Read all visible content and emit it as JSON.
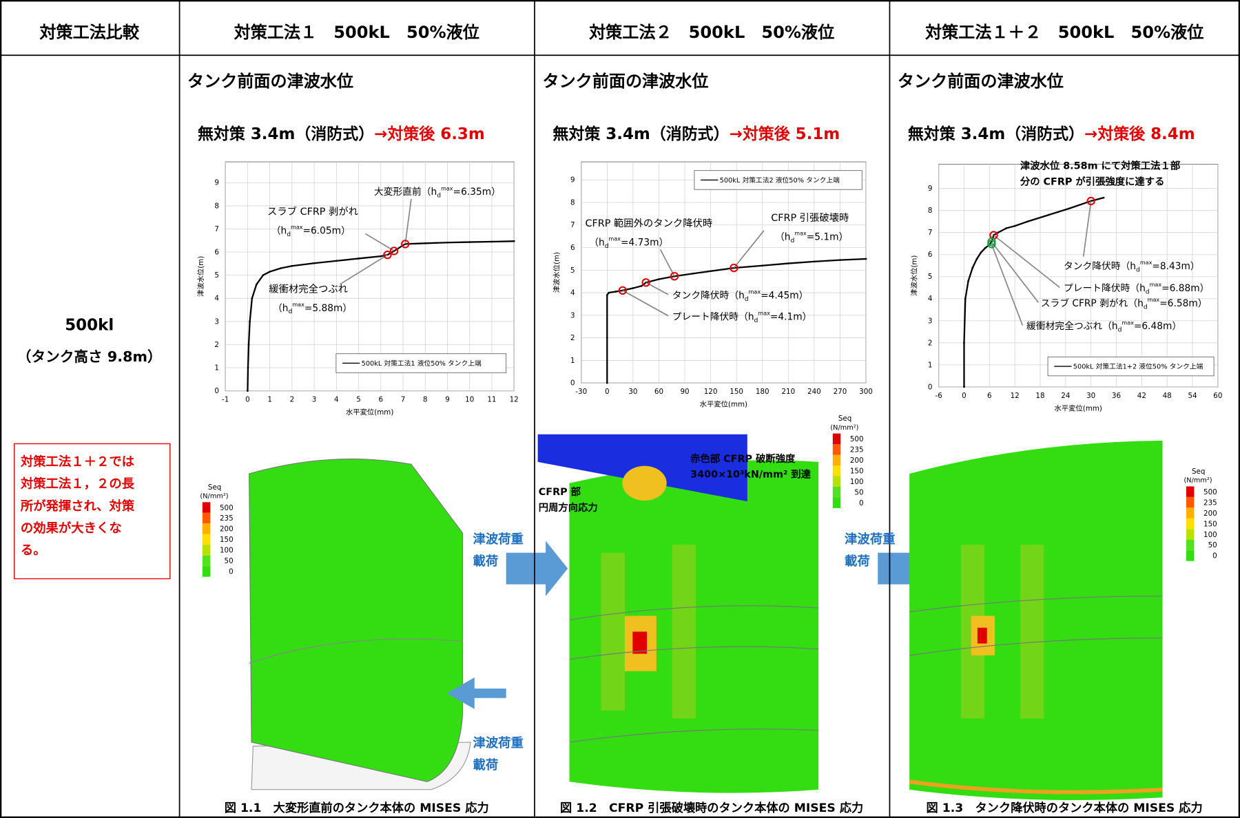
{
  "table": {
    "headers": [
      "対策工法比較",
      "対策工法１　500kL　50%液位",
      "対策工法２　500kL　50%液位",
      "対策工法１＋２　500kL　50%液位"
    ],
    "row_label": {
      "title": "500kl",
      "subtitle": "（タンク高さ 9.8m）",
      "note_lines": [
        "対策工法１＋２では",
        "対策工法１，２の長",
        "所が発揮され、対策",
        "の効果が大きくな",
        "る。"
      ]
    },
    "columns": [
      {
        "heading": "タンク前面の津波水位",
        "before": "無対策 3.4m（消防式）",
        "after": "→対策後 6.3m",
        "chart": {
          "type": "line",
          "xlabel": "水平変位(mm)",
          "ylabel": "津波水位(m)",
          "xlim": [
            -1,
            12
          ],
          "ylim": [
            0,
            9.9
          ],
          "xticks": [
            -1,
            0,
            1,
            2,
            3,
            4,
            5,
            6,
            7,
            8,
            9,
            10,
            11,
            12
          ],
          "yticks": [
            0,
            1,
            2,
            3,
            4,
            5,
            6,
            7,
            8,
            9
          ],
          "grid": true,
          "legend": "lower right",
          "series": [
            {
              "name": "500kL 対策工法1 液位50% タンク上端",
              "color": "#000000",
              "x": [
                0,
                0.02,
                0.05,
                0.1,
                0.2,
                0.4,
                0.7,
                1,
                1.5,
                2,
                3,
                4,
                5,
                6,
                6.3,
                6.6,
                7.1,
                8,
                9,
                10,
                11,
                12
              ],
              "values": [
                0,
                1,
                2,
                3,
                4,
                4.6,
                5,
                5.15,
                5.3,
                5.4,
                5.52,
                5.62,
                5.72,
                5.82,
                5.88,
                6.05,
                6.35,
                6.38,
                6.41,
                6.43,
                6.45,
                6.47
              ]
            }
          ],
          "h_prefix": "（h",
          "h_sub": "d",
          "h_sup": "max",
          "points": [
            {
              "x": 7.1,
              "y": 6.35,
              "color": "#e00000",
              "label": [
                "大変形直前"
              ],
              "value_label": "=6.35m）"
            },
            {
              "x": 6.6,
              "y": 6.05,
              "color": "#e00000",
              "label": [
                "スラブ CFRP 剥がれ"
              ],
              "value_label": "=6.05m）"
            },
            {
              "x": 6.3,
              "y": 5.88,
              "color": "#e00000",
              "label": [
                "緩衝材完全つぶれ"
              ],
              "value_label": "=5.88m）"
            }
          ]
        },
        "figure": {
          "colorbar": {
            "title": "Seq",
            "unit": "(N/mm²)",
            "labels": [
              500,
              235,
              200,
              150,
              100,
              50,
              0
            ]
          },
          "caption": "図 1.1　大変形直前のタンク本体の MISES 応力"
        }
      },
      {
        "heading": "タンク前面の津波水位",
        "before": "無対策 3.4m（消防式）",
        "after": "→対策後 5.1m",
        "chart": {
          "type": "line",
          "xlabel": "水平変位(mm)",
          "ylabel": "津波水位(m)",
          "xlim": [
            -30,
            300
          ],
          "ylim": [
            0,
            9.8
          ],
          "xticks": [
            -30,
            0,
            30,
            60,
            90,
            120,
            150,
            180,
            210,
            240,
            270,
            300
          ],
          "yticks": [
            0,
            1,
            2,
            3,
            4,
            5,
            6,
            7,
            8,
            9
          ],
          "grid": true,
          "legend": "upper right",
          "series": [
            {
              "name": "500kL 対策工法2 液位50% タンク上端",
              "color": "#000000",
              "x": [
                0,
                0,
                0,
                2,
                10,
                18,
                30,
                40,
                45,
                60,
                78,
                100,
                147,
                180,
                210,
                240,
                270,
                300
              ],
              "values": [
                0,
                2,
                3.9,
                4.0,
                4.05,
                4.1,
                4.2,
                4.3,
                4.45,
                4.6,
                4.73,
                4.85,
                5.1,
                5.2,
                5.3,
                5.38,
                5.45,
                5.5
              ]
            }
          ],
          "h_prefix": "（h",
          "h_sub": "d",
          "h_sup": "max",
          "points": [
            {
              "x": 147,
              "y": 5.1,
              "color": "#e00000",
              "label": [
                "CFRP 引張破壊時"
              ],
              "value_label": "=5.1m）"
            },
            {
              "x": 78,
              "y": 4.73,
              "color": "#e00000",
              "label": [
                "CFRP 範囲外のタンク降伏時"
              ],
              "value_label": "=4.73m）"
            },
            {
              "x": 45,
              "y": 4.45,
              "color": "#e00000",
              "label": [
                "タンク降伏時"
              ],
              "value_label": "=4.45m）"
            },
            {
              "x": 18,
              "y": 4.1,
              "color": "#e00000",
              "label": [
                "プレート降伏時"
              ],
              "value_label": "=4.1m）"
            }
          ]
        },
        "figure": {
          "colorbar": {
            "title": "Seq",
            "unit": "(N/mm²)",
            "labels": [
              500,
              235,
              200,
              150,
              100,
              50,
              0
            ]
          },
          "caption": "図 1.2　CFRP 引張破壊時のタンク本体の MISES 応力"
        }
      },
      {
        "heading": "タンク前面の津波水位",
        "before": "無対策 3.4m（消防式）",
        "after": "→対策後 8.4m",
        "chart": {
          "type": "line",
          "xlabel": "水平変位(mm)",
          "ylabel": "津波水位(m)",
          "xlim": [
            -6,
            60
          ],
          "ylim": [
            0,
            10.1
          ],
          "xticks": [
            -6,
            0,
            6,
            12,
            18,
            24,
            30,
            36,
            42,
            48,
            54,
            60
          ],
          "yticks": [
            0,
            1,
            2,
            3,
            4,
            5,
            6,
            7,
            8,
            9
          ],
          "grid": true,
          "legend": "lower right",
          "series": [
            {
              "name": "500kL 対策工法1+2 液位50% タンク上端",
              "color": "#000000",
              "x": [
                0,
                0,
                0.3,
                1,
                2,
                3,
                4,
                5,
                6,
                6.5,
                7,
                8,
                10,
                12,
                15,
                20,
                25,
                30,
                33
              ],
              "values": [
                0,
                2,
                4,
                4.8,
                5.4,
                5.8,
                6.1,
                6.3,
                6.45,
                6.58,
                6.88,
                7.0,
                7.2,
                7.3,
                7.5,
                7.8,
                8.1,
                8.43,
                8.58
              ]
            }
          ],
          "h_prefix": "（h",
          "h_sub": "d",
          "h_sup": "max",
          "note": [
            "津波水位 8.58m にて対策工法１部",
            "分の CFRP が引張強度に達する"
          ],
          "points": [
            {
              "x": 30,
              "y": 8.43,
              "color": "#e00000",
              "label": [
                "タンク降伏時"
              ],
              "value_label": "=8.43m）"
            },
            {
              "x": 7,
              "y": 6.88,
              "color": "#e00000",
              "label": [
                "プレート降伏時"
              ],
              "value_label": "=6.88m）"
            },
            {
              "x": 6.5,
              "y": 6.58,
              "color": "#10a040",
              "label": [
                "スラブ CFRP 剥がれ"
              ],
              "value_label": "=6.58m）"
            },
            {
              "x": 6.5,
              "y": 6.48,
              "color": "#10a040",
              "label": [
                "緩衝材完全つぶれ"
              ],
              "value_label": "=6.48m）"
            }
          ]
        },
        "figure": {
          "colorbar": {
            "title": "Seq",
            "unit": "(N/mm²)",
            "labels": [
              500,
              235,
              200,
              150,
              100,
              50,
              0
            ]
          },
          "caption": "図 1.3　タンク降伏時のタンク本体の MISES 応力"
        }
      }
    ],
    "arrows": [
      {
        "lines": [
          "津波荷重",
          "載荷"
        ]
      },
      {
        "lines": [
          "津波荷重",
          "載荷"
        ]
      },
      {
        "lines": [
          "津波荷重",
          "載荷"
        ]
      }
    ],
    "inset": {
      "lines": [
        "赤色部 CFRP 破断強度",
        "3400×10³kN/mm² 到達"
      ],
      "part_lines": [
        "CFRP 部",
        "円周方向応力"
      ]
    }
  }
}
